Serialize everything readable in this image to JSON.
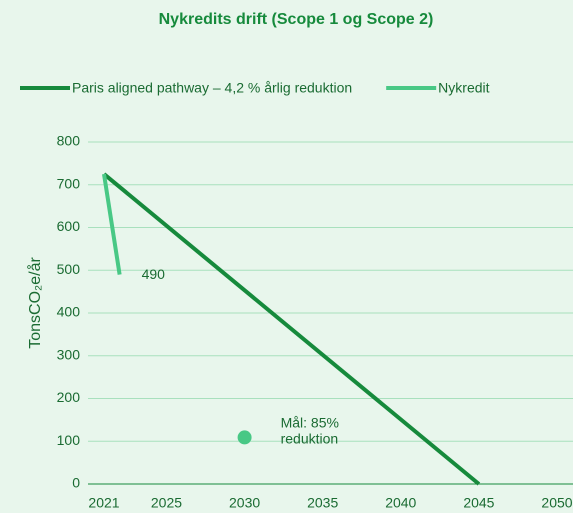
{
  "chart_data": {
    "type": "line",
    "title": "Nykredits drift (Scope 1 og Scope 2)",
    "y_label": "TonsCO₂e/år",
    "xlim": [
      2021,
      2050
    ],
    "xticks": [
      2021,
      2025,
      2030,
      2035,
      2040,
      2045,
      2050
    ],
    "ylim": [
      0,
      800
    ],
    "yticks": [
      0,
      100,
      200,
      300,
      400,
      500,
      600,
      700,
      800
    ],
    "grid": true,
    "legend": "top",
    "series": [
      {
        "name": "Paris aligned pathway – 4,2 % årlig reduktion",
        "color": "#168a3c",
        "x": [
          2021,
          2045
        ],
        "values": [
          725,
          0
        ]
      },
      {
        "name": "Nykredit",
        "color": "#48c885",
        "x": [
          2021,
          2022
        ],
        "values": [
          725,
          490
        ]
      }
    ],
    "points": [
      {
        "x": 2030,
        "value": 109,
        "color": "#48c885"
      }
    ],
    "annotations": [
      {
        "x": 2030,
        "lines": [
          "Mål: 85%",
          "reduktion"
        ]
      }
    ]
  }
}
